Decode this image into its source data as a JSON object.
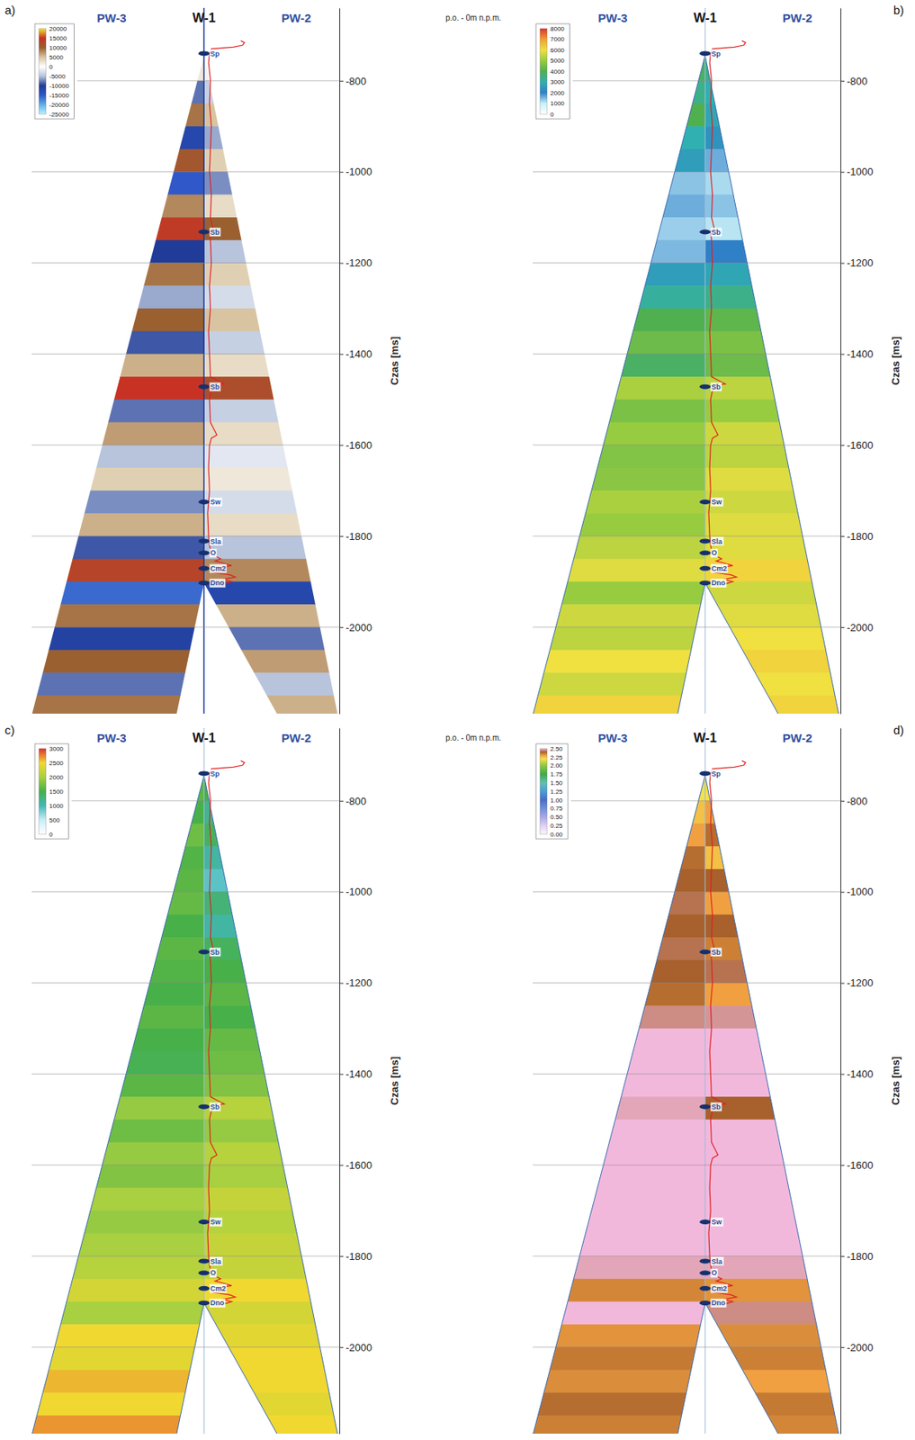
{
  "chart_data": [
    {
      "type": "seismic",
      "panel": "a)",
      "annotation": "p.o. - 0m n.p.m.",
      "ylabel": "Czas [ms]",
      "ylim": [
        -2190,
        -640
      ],
      "yticks": [
        -2000,
        -1800,
        -1600,
        -1400,
        -1200,
        -1000,
        -800
      ],
      "grid": true,
      "bins": [
        -750,
        -800,
        -850,
        -900,
        -950,
        -1000,
        -1050,
        -1100,
        -1150,
        -1200,
        -1250,
        -1300,
        -1350,
        -1400,
        -1450,
        -1500,
        -1550,
        -1600,
        -1650,
        -1700,
        -1750,
        -1800,
        -1850,
        -1900,
        -1950,
        -2000,
        -2050,
        -2100,
        -2150,
        -2200
      ],
      "left": [
        2000,
        -8000,
        9000,
        -12000,
        11000,
        -15000,
        8000,
        14000,
        -10000,
        9000,
        -6000,
        10000,
        -9000,
        6000,
        15000,
        -8000,
        7000,
        -5000,
        4000,
        -7000,
        6000,
        -9000,
        13000,
        -16000,
        9000,
        -11000,
        10000,
        -8000,
        9000
      ],
      "right": [
        1000,
        -4000,
        5000,
        -6000,
        4000,
        -7000,
        3000,
        10000,
        -5000,
        4000,
        -3000,
        5000,
        -4000,
        3000,
        12000,
        -4000,
        3000,
        -2000,
        2000,
        -3000,
        3000,
        -5000,
        8000,
        -12000,
        6000,
        -8000,
        7000,
        -5000,
        6000
      ],
      "colorbar_range": [
        -25000,
        20000
      ],
      "colorbar_ticks": [
        20000,
        15000,
        10000,
        5000,
        0,
        -5000,
        -10000,
        -15000,
        -20000,
        -25000
      ]
    },
    {
      "type": "heatmap",
      "panel": "b)",
      "ylabel": "Czas [ms]",
      "ylim": [
        -2190,
        -640
      ],
      "yticks": [
        -2000,
        -1800,
        -1600,
        -1400,
        -1200,
        -1000,
        -800
      ],
      "grid": true,
      "bins": [
        -750,
        -800,
        -850,
        -900,
        -950,
        -1000,
        -1050,
        -1100,
        -1150,
        -1200,
        -1250,
        -1300,
        -1350,
        -1400,
        -1450,
        -1500,
        -1550,
        -1600,
        -1650,
        -1700,
        -1750,
        -1800,
        -1850,
        -1900,
        -1950,
        -2000,
        -2050,
        -2100,
        -2150,
        -2200
      ],
      "left": [
        3800,
        3400,
        4000,
        3000,
        2600,
        1400,
        1600,
        1300,
        1500,
        2600,
        3200,
        4000,
        4400,
        3800,
        5200,
        4600,
        5000,
        4700,
        4800,
        5200,
        5000,
        5400,
        5800,
        5000,
        5600,
        5400,
        6000,
        5600,
        6200
      ],
      "right": [
        3400,
        3000,
        2800,
        2400,
        1600,
        1200,
        1400,
        1100,
        2000,
        2800,
        3400,
        4200,
        4600,
        4400,
        5400,
        5000,
        5600,
        5400,
        5800,
        5600,
        5800,
        5800,
        6200,
        5600,
        5800,
        6000,
        6200,
        6000,
        6200
      ],
      "colorbar_range": [
        0,
        8000
      ],
      "colorbar_ticks": [
        8000,
        7000,
        6000,
        5000,
        4000,
        3000,
        2000,
        1000,
        0
      ]
    },
    {
      "type": "heatmap",
      "panel": "c)",
      "annotation": "p.o. - 0m n.p.m.",
      "ylabel": "Czas [ms]",
      "ylim": [
        -2190,
        -640
      ],
      "yticks": [
        -2000,
        -1800,
        -1600,
        -1400,
        -1200,
        -1000,
        -800
      ],
      "grid": true,
      "bins": [
        -750,
        -800,
        -850,
        -900,
        -950,
        -1000,
        -1050,
        -1100,
        -1150,
        -1200,
        -1250,
        -1300,
        -1350,
        -1400,
        -1450,
        -1500,
        -1550,
        -1600,
        -1650,
        -1700,
        -1750,
        -1800,
        -1850,
        -1900,
        -1950,
        -2000,
        -2050,
        -2100,
        -2150,
        -2200
      ],
      "left": [
        1600,
        1500,
        1700,
        1550,
        1600,
        1650,
        1500,
        1600,
        1550,
        1500,
        1600,
        1500,
        1450,
        1600,
        1900,
        1700,
        1900,
        1800,
        2000,
        1900,
        2000,
        2100,
        2300,
        2000,
        2500,
        2400,
        2600,
        2500,
        2700
      ],
      "right": [
        1500,
        1200,
        1400,
        1100,
        900,
        1300,
        1100,
        1400,
        1500,
        1600,
        1500,
        1650,
        1700,
        1800,
        2100,
        1900,
        2100,
        2000,
        2200,
        2100,
        2200,
        2200,
        2500,
        2300,
        2400,
        2500,
        2500,
        2400,
        2500
      ],
      "colorbar_range": [
        0,
        3000
      ],
      "colorbar_ticks": [
        3000,
        2500,
        2000,
        1500,
        1000,
        500,
        0
      ]
    },
    {
      "type": "heatmap",
      "panel": "d)",
      "ylabel": "Czas [ms]",
      "ylim": [
        -2190,
        -640
      ],
      "yticks": [
        -2000,
        -1800,
        -1600,
        -1400,
        -1200,
        -1000,
        -800
      ],
      "grid": true,
      "bins": [
        -750,
        -800,
        -850,
        -900,
        -950,
        -1000,
        -1050,
        -1100,
        -1150,
        -1200,
        -1250,
        -1300,
        -1350,
        -1400,
        -1450,
        -1500,
        -1550,
        -1600,
        -1650,
        -1700,
        -1750,
        -1800,
        -1850,
        -1900,
        -1950,
        -2000,
        -2050,
        -2100,
        -2150,
        -2200
      ],
      "left": [
        2.2,
        2.25,
        2.3,
        2.38,
        2.4,
        2.42,
        2.4,
        2.42,
        2.4,
        2.38,
        2.45,
        2.52,
        2.5,
        2.55,
        2.48,
        2.54,
        2.5,
        2.55,
        2.52,
        2.5,
        2.54,
        2.48,
        2.34,
        2.5,
        2.32,
        2.36,
        2.33,
        2.38,
        2.35
      ],
      "right": [
        2.2,
        2.3,
        2.38,
        2.25,
        2.4,
        2.3,
        2.4,
        2.35,
        2.42,
        2.3,
        2.46,
        2.5,
        2.55,
        2.5,
        2.4,
        2.52,
        2.5,
        2.55,
        2.5,
        2.52,
        2.5,
        2.48,
        2.32,
        2.45,
        2.33,
        2.35,
        2.3,
        2.36,
        2.34
      ],
      "colorbar_range": [
        0,
        2.5
      ],
      "colorbar_ticks": [
        {
          "value": 2.5,
          "label": "2.50"
        },
        {
          "value": 2.25,
          "label": "2.25"
        },
        {
          "value": 2.0,
          "label": "2.00"
        },
        {
          "value": 1.75,
          "label": "1.75"
        },
        {
          "value": 1.5,
          "label": "1.50"
        },
        {
          "value": 1.25,
          "label": "1.25"
        },
        {
          "value": 1.0,
          "label": "1.00"
        },
        {
          "value": 0.75,
          "label": "0.75"
        },
        {
          "value": 0.5,
          "label": "0.50"
        },
        {
          "value": 0.25,
          "label": "0.25"
        },
        {
          "value": 0,
          "label": "0.00"
        }
      ]
    }
  ],
  "well": {
    "name": "W-1",
    "neighbours": [
      "PW-3",
      "PW-2"
    ],
    "horizons": [
      {
        "label": "Sp",
        "time": -740
      },
      {
        "label": "Sb",
        "time": -1132
      },
      {
        "label": "Sb",
        "time": -1472
      },
      {
        "label": "Sw",
        "time": -1725
      },
      {
        "label": "Sla",
        "time": -1811
      },
      {
        "label": "O",
        "time": -1837
      },
      {
        "label": "Cm2",
        "time": -1871
      },
      {
        "label": "Dno",
        "time": -1903
      }
    ],
    "curve": {
      "t": [
        -712,
        -716,
        -722,
        -726,
        -730,
        -740,
        -760,
        -800,
        -850,
        -900,
        -950,
        -1000,
        -1050,
        -1100,
        -1125,
        -1130,
        -1150,
        -1200,
        -1250,
        -1300,
        -1350,
        -1400,
        -1450,
        -1462,
        -1466,
        -1470,
        -1480,
        -1500,
        -1550,
        -1570,
        -1578,
        -1585,
        -1600,
        -1650,
        -1700,
        -1750,
        -1800,
        -1820,
        -1840,
        -1850,
        -1855,
        -1860,
        -1865,
        -1870,
        -1875,
        -1880,
        -1885,
        -1890,
        -1895,
        -1900,
        -1905,
        -1910
      ],
      "v": [
        40,
        44,
        42,
        32,
        8,
        6,
        5,
        7,
        6,
        8,
        7,
        6,
        8,
        7,
        10,
        6,
        7,
        8,
        6,
        7,
        5,
        6,
        7,
        18,
        22,
        10,
        8,
        6,
        7,
        12,
        14,
        8,
        6,
        5,
        6,
        4,
        5,
        6,
        8,
        18,
        12,
        22,
        30,
        14,
        24,
        10,
        28,
        34,
        20,
        30,
        22,
        12
      ]
    }
  }
}
